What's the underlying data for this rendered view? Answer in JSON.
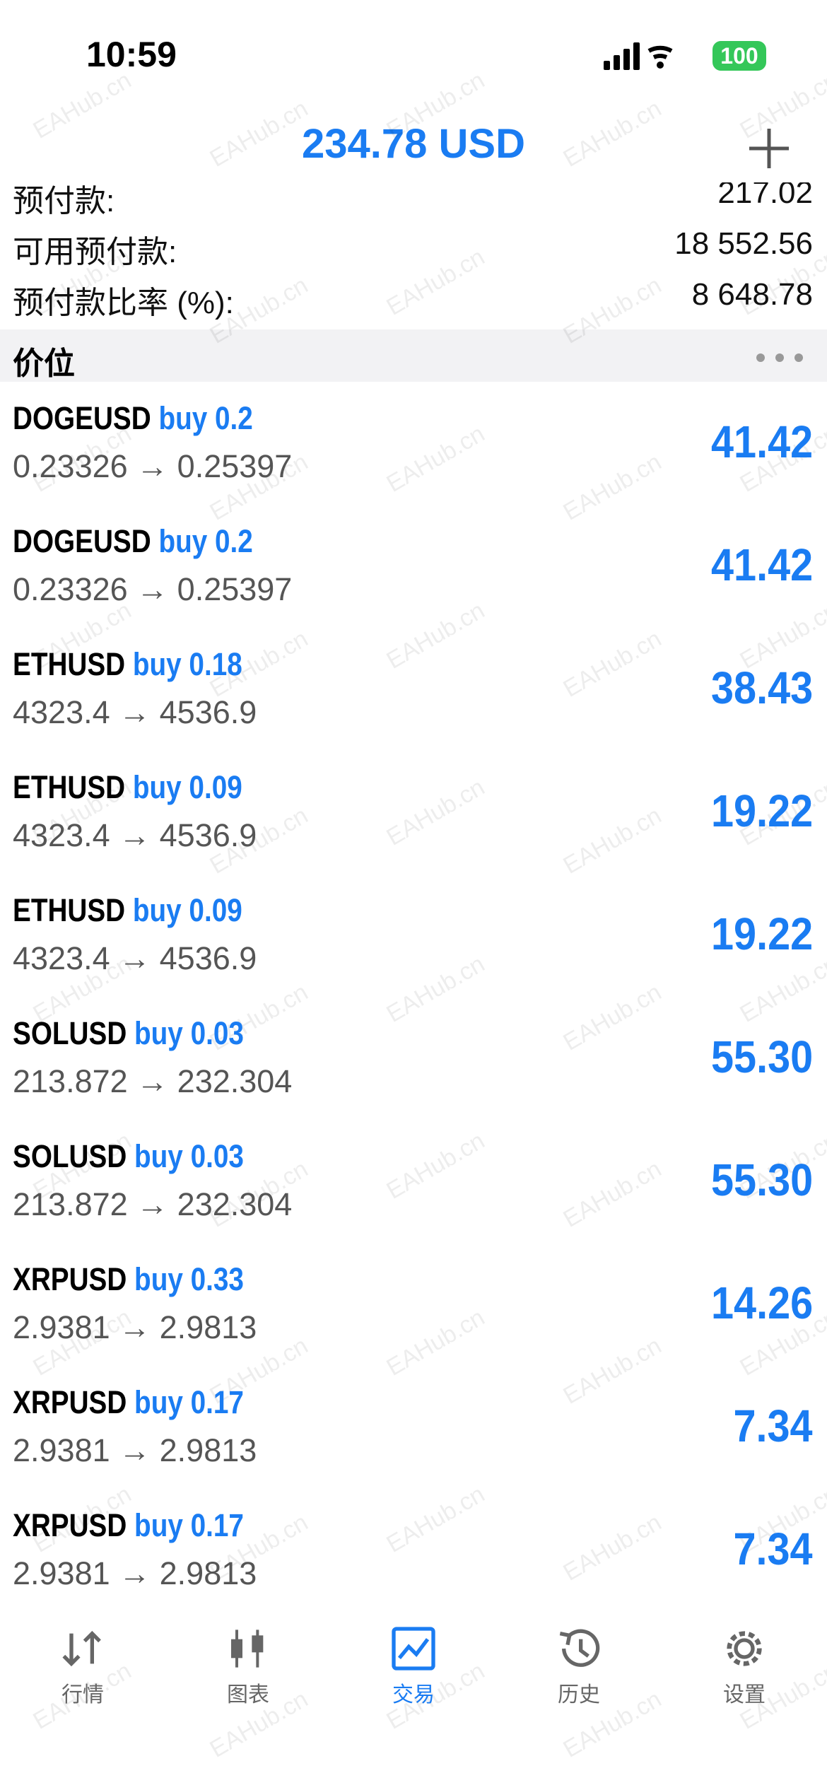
{
  "status": {
    "time": "10:59",
    "battery": "100"
  },
  "header": {
    "title": "234.78 USD"
  },
  "account": [
    {
      "label": "预付款:",
      "value": "217.02"
    },
    {
      "label": "可用预付款:",
      "value": "18 552.56"
    },
    {
      "label": "预付款比率 (%):",
      "value": "8 648.78"
    }
  ],
  "section": {
    "title": "价位"
  },
  "positions": [
    {
      "symbol": "DOGEUSD",
      "side": "buy 0.2",
      "prices": "0.23326 → 0.25397",
      "profit": "41.42"
    },
    {
      "symbol": "DOGEUSD",
      "side": "buy 0.2",
      "prices": "0.23326 → 0.25397",
      "profit": "41.42"
    },
    {
      "symbol": "ETHUSD",
      "side": "buy 0.18",
      "prices": "4323.4 → 4536.9",
      "profit": "38.43"
    },
    {
      "symbol": "ETHUSD",
      "side": "buy 0.09",
      "prices": "4323.4 → 4536.9",
      "profit": "19.22"
    },
    {
      "symbol": "ETHUSD",
      "side": "buy 0.09",
      "prices": "4323.4 → 4536.9",
      "profit": "19.22"
    },
    {
      "symbol": "SOLUSD",
      "side": "buy 0.03",
      "prices": "213.872 → 232.304",
      "profit": "55.30"
    },
    {
      "symbol": "SOLUSD",
      "side": "buy 0.03",
      "prices": "213.872 → 232.304",
      "profit": "55.30"
    },
    {
      "symbol": "XRPUSD",
      "side": "buy 0.33",
      "prices": "2.9381 → 2.9813",
      "profit": "14.26"
    },
    {
      "symbol": "XRPUSD",
      "side": "buy 0.17",
      "prices": "2.9381 → 2.9813",
      "profit": "7.34"
    },
    {
      "symbol": "XRPUSD",
      "side": "buy 0.17",
      "prices": "2.9381 → 2.9813",
      "profit": "7.34"
    }
  ],
  "tabs": [
    "行情",
    "图表",
    "交易",
    "历史",
    "设置"
  ],
  "watermark": "EAHub.cn"
}
